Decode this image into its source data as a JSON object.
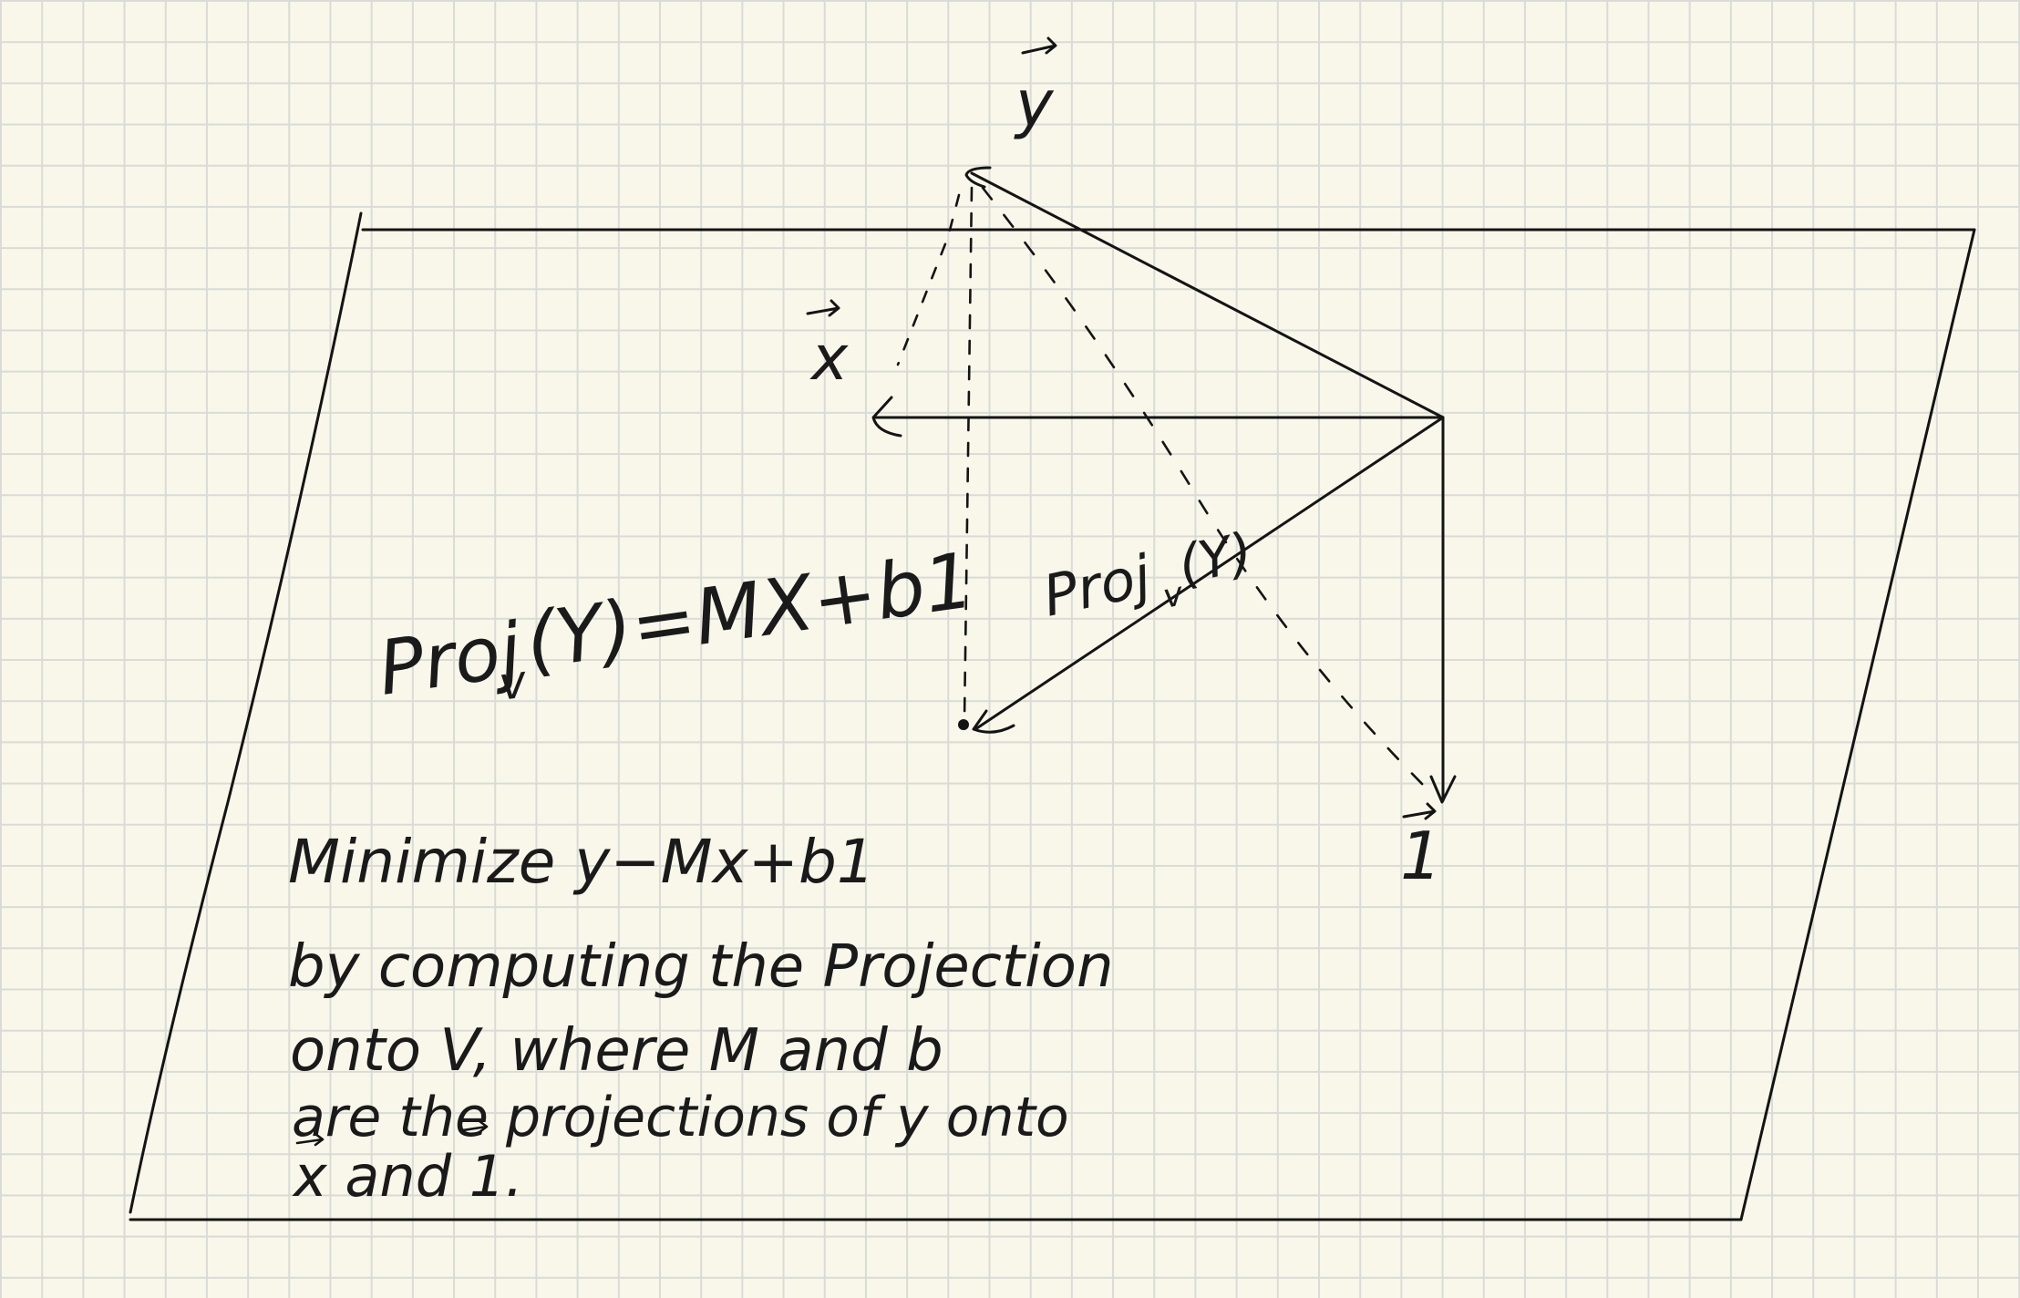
{
  "labels": {
    "y_vector": "y",
    "x_vector": "x",
    "one_vector": "1",
    "proj_onto_v_formula_main": "Proj",
    "proj_onto_v_formula_sub": "v",
    "proj_onto_v_formula_rest": "(Y)=MX+b1",
    "proj_label_main": "Proj",
    "proj_label_sub": "v",
    "proj_label_rest": "(Y)"
  },
  "note": {
    "line1": "Minimize   y−Mx+b1",
    "line2": "by computing the Projection",
    "line3": "onto  V, where  M and b",
    "line4": "are the projections of y onto",
    "line5": "x and  1."
  },
  "colors": {
    "paper": "#f8f7ea",
    "grid": "#d9dcd6",
    "ink": "#141414"
  }
}
